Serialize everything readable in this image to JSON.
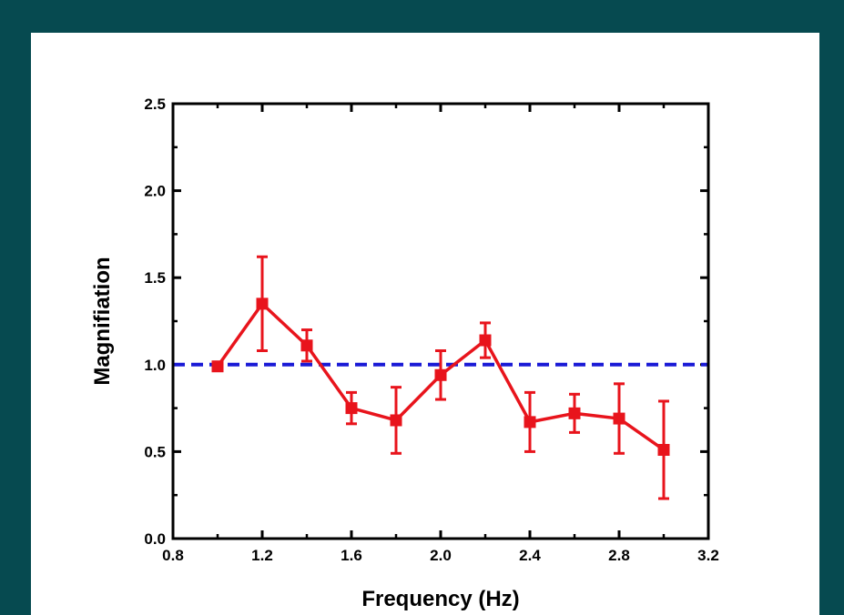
{
  "chart_data": {
    "type": "line",
    "title": "",
    "xlabel": "Frequency (Hz)",
    "ylabel": "Magnifiation",
    "xlim": [
      0.8,
      3.2
    ],
    "ylim": [
      0.0,
      2.5
    ],
    "x_ticks": [
      "0.8",
      "1.2",
      "1.6",
      "2.0",
      "2.4",
      "2.8",
      "3.2"
    ],
    "y_ticks": [
      "0.0",
      "0.5",
      "1.0",
      "1.5",
      "2.0",
      "2.5"
    ],
    "grid": false,
    "legend": "none",
    "series": [
      {
        "color": "#e8141c",
        "marker": "square",
        "x": [
          1.0,
          1.2,
          1.4,
          1.6,
          1.8,
          2.0,
          2.2,
          2.4,
          2.6,
          2.8,
          3.0
        ],
        "y": [
          0.99,
          1.35,
          1.11,
          0.75,
          0.68,
          0.94,
          1.14,
          0.67,
          0.72,
          0.69,
          0.51
        ],
        "error": [
          0.02,
          0.27,
          0.09,
          0.09,
          0.19,
          0.14,
          0.1,
          0.17,
          0.11,
          0.2,
          0.28
        ]
      }
    ],
    "reference_line": {
      "y": 1.0,
      "style": "dashed",
      "color": "#1a1ad6"
    }
  }
}
